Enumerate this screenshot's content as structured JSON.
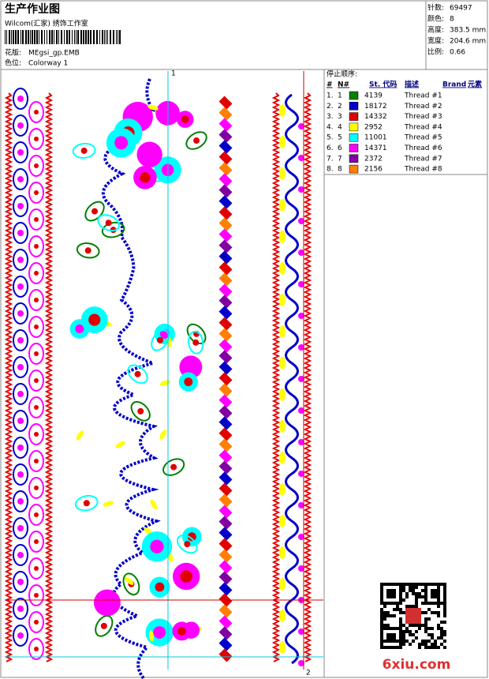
{
  "header": {
    "title": "生产作业图",
    "studio": "Wilcom(汇家) 绣饰工作室",
    "design_label": "花版:",
    "design": "MEgsi_gp.EMB",
    "colorway_label": "色位:",
    "colorway": "Colorway 1"
  },
  "info": [
    {
      "label": "针数:",
      "value": "69497"
    },
    {
      "label": "颜色:",
      "value": "8"
    },
    {
      "label": "高度:",
      "value": "383.5 mm"
    },
    {
      "label": "宽度:",
      "value": "204.6 mm"
    },
    {
      "label": "比例:",
      "value": "0.66"
    }
  ],
  "stop_sequence": {
    "title": "停止顺序:",
    "columns": [
      "#",
      "N#",
      "St. 代码",
      "描述",
      "Brand",
      "元素"
    ],
    "rows": [
      {
        "index": "1.",
        "n": "1",
        "color": "#008000",
        "code": "4139",
        "description": "Thread #1"
      },
      {
        "index": "2.",
        "n": "2",
        "color": "#0000c8",
        "code": "18172",
        "description": "Thread #2"
      },
      {
        "index": "3.",
        "n": "3",
        "color": "#e00000",
        "code": "14332",
        "description": "Thread #3"
      },
      {
        "index": "4.",
        "n": "4",
        "color": "#ffff00",
        "code": "2952",
        "description": "Thread #4"
      },
      {
        "index": "5.",
        "n": "5",
        "color": "#00ffff",
        "code": "11001",
        "description": "Thread #5"
      },
      {
        "index": "6.",
        "n": "6",
        "color": "#ff00ff",
        "code": "14371",
        "description": "Thread #6"
      },
      {
        "index": "7.",
        "n": "7",
        "color": "#8000a0",
        "code": "2372",
        "description": "Thread #7"
      },
      {
        "index": "8.",
        "n": "8",
        "color": "#ff8000",
        "code": "2156",
        "description": "Thread #8"
      }
    ]
  },
  "guides": [
    "1",
    "2"
  ],
  "watermark": "6xiu.com"
}
